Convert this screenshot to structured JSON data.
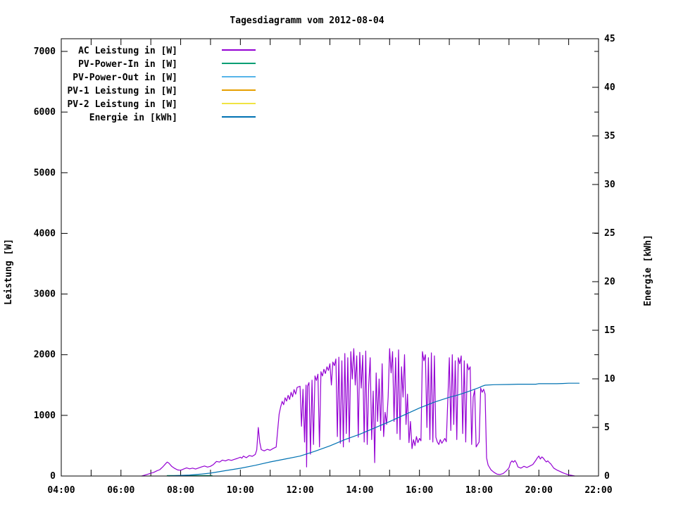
{
  "title": "Tagesdiagramm vom 2012-08-04",
  "chart_data": {
    "type": "line",
    "title": "Tagesdiagramm vom 2012-08-04",
    "background_color": "#ffffff",
    "border_color": "#000000",
    "legend_position": "top-left-inside",
    "grid": false,
    "x_axis": {
      "min_hour": 4,
      "max_hour": 22,
      "tick_interval_hours": 1,
      "labels": [
        {
          "t": 4,
          "text": "04:00"
        },
        {
          "t": 6,
          "text": "06:00"
        },
        {
          "t": 8,
          "text": "08:00"
        },
        {
          "t": 10,
          "text": "10:00"
        },
        {
          "t": 12,
          "text": "12:00"
        },
        {
          "t": 14,
          "text": "14:00"
        },
        {
          "t": 16,
          "text": "16:00"
        },
        {
          "t": 18,
          "text": "18:00"
        },
        {
          "t": 20,
          "text": "20:00"
        },
        {
          "t": 22,
          "text": "22:00"
        }
      ]
    },
    "left_axis": {
      "label": "Leistung [W]",
      "min": 0,
      "max": 7250,
      "tick_step": 1000,
      "tick_max": 7000,
      "tick_labels": [
        "0",
        "1000",
        "2000",
        "3000",
        "4000",
        "5000",
        "6000",
        "7000"
      ]
    },
    "right_axis": {
      "label": "Energie [kWh]",
      "min": 0,
      "max": 45,
      "tick_step": 5,
      "tick_labels": [
        "0",
        "5",
        "10",
        "15",
        "20",
        "25",
        "30",
        "35",
        "40",
        "45"
      ]
    },
    "series": [
      {
        "name": "ac-leistung",
        "legend_label": "AC Leistung in [W]",
        "color": "#9400d3",
        "axis": "left",
        "points": [
          [
            6.7,
            0
          ],
          [
            6.8,
            15
          ],
          [
            6.9,
            30
          ],
          [
            7.0,
            45
          ],
          [
            7.1,
            60
          ],
          [
            7.2,
            85
          ],
          [
            7.3,
            105
          ],
          [
            7.4,
            150
          ],
          [
            7.5,
            205
          ],
          [
            7.55,
            230
          ],
          [
            7.6,
            215
          ],
          [
            7.7,
            160
          ],
          [
            7.8,
            125
          ],
          [
            7.9,
            100
          ],
          [
            8.0,
            95
          ],
          [
            8.1,
            115
          ],
          [
            8.2,
            135
          ],
          [
            8.3,
            118
          ],
          [
            8.4,
            130
          ],
          [
            8.5,
            115
          ],
          [
            8.6,
            132
          ],
          [
            8.7,
            150
          ],
          [
            8.8,
            165
          ],
          [
            8.9,
            148
          ],
          [
            9.0,
            160
          ],
          [
            9.1,
            190
          ],
          [
            9.2,
            240
          ],
          [
            9.3,
            230
          ],
          [
            9.4,
            262
          ],
          [
            9.5,
            248
          ],
          [
            9.6,
            270
          ],
          [
            9.7,
            258
          ],
          [
            9.8,
            275
          ],
          [
            9.9,
            290
          ],
          [
            10.0,
            310
          ],
          [
            10.05,
            295
          ],
          [
            10.1,
            328
          ],
          [
            10.2,
            302
          ],
          [
            10.3,
            338
          ],
          [
            10.4,
            325
          ],
          [
            10.5,
            355
          ],
          [
            10.55,
            430
          ],
          [
            10.6,
            800
          ],
          [
            10.65,
            555
          ],
          [
            10.7,
            435
          ],
          [
            10.8,
            415
          ],
          [
            10.9,
            440
          ],
          [
            11.0,
            425
          ],
          [
            11.1,
            455
          ],
          [
            11.2,
            478
          ],
          [
            11.3,
            1020
          ],
          [
            11.35,
            1140
          ],
          [
            11.4,
            1230
          ],
          [
            11.45,
            1175
          ],
          [
            11.5,
            1290
          ],
          [
            11.55,
            1235
          ],
          [
            11.6,
            1330
          ],
          [
            11.65,
            1262
          ],
          [
            11.7,
            1380
          ],
          [
            11.75,
            1305
          ],
          [
            11.8,
            1425
          ],
          [
            11.85,
            1350
          ],
          [
            11.9,
            1460
          ],
          [
            12.0,
            1480
          ],
          [
            12.05,
            820
          ],
          [
            12.1,
            1430
          ],
          [
            12.15,
            560
          ],
          [
            12.2,
            1500
          ],
          [
            12.22,
            150
          ],
          [
            12.25,
            1480
          ],
          [
            12.3,
            1540
          ],
          [
            12.35,
            360
          ],
          [
            12.4,
            1580
          ],
          [
            12.45,
            520
          ],
          [
            12.5,
            1650
          ],
          [
            12.55,
            1575
          ],
          [
            12.6,
            1680
          ],
          [
            12.65,
            480
          ],
          [
            12.7,
            1720
          ],
          [
            12.75,
            1650
          ],
          [
            12.8,
            1760
          ],
          [
            12.85,
            1690
          ],
          [
            12.9,
            1800
          ],
          [
            12.95,
            1740
          ],
          [
            13.0,
            1850
          ],
          [
            13.05,
            1500
          ],
          [
            13.1,
            1880
          ],
          [
            13.15,
            1820
          ],
          [
            13.2,
            1930
          ],
          [
            13.25,
            650
          ],
          [
            13.3,
            1960
          ],
          [
            13.35,
            540
          ],
          [
            13.4,
            1900
          ],
          [
            13.45,
            480
          ],
          [
            13.5,
            2020
          ],
          [
            13.55,
            700
          ],
          [
            13.6,
            1950
          ],
          [
            13.65,
            560
          ],
          [
            13.7,
            2050
          ],
          [
            13.75,
            1600
          ],
          [
            13.8,
            2100
          ],
          [
            13.85,
            1500
          ],
          [
            13.9,
            1980
          ],
          [
            13.95,
            640
          ],
          [
            14.0,
            2040
          ],
          [
            14.05,
            1450
          ],
          [
            14.1,
            1990
          ],
          [
            14.15,
            560
          ],
          [
            14.2,
            2060
          ],
          [
            14.25,
            520
          ],
          [
            14.3,
            1500
          ],
          [
            14.35,
            1950
          ],
          [
            14.4,
            600
          ],
          [
            14.45,
            1400
          ],
          [
            14.5,
            220
          ],
          [
            14.55,
            1700
          ],
          [
            14.6,
            900
          ],
          [
            14.65,
            1600
          ],
          [
            14.7,
            750
          ],
          [
            14.75,
            1850
          ],
          [
            14.8,
            650
          ],
          [
            14.85,
            1050
          ],
          [
            14.9,
            850
          ],
          [
            14.95,
            1300
          ],
          [
            15.0,
            2100
          ],
          [
            15.05,
            1700
          ],
          [
            15.1,
            2050
          ],
          [
            15.15,
            900
          ],
          [
            15.2,
            1950
          ],
          [
            15.25,
            700
          ],
          [
            15.3,
            2080
          ],
          [
            15.35,
            600
          ],
          [
            15.4,
            1800
          ],
          [
            15.45,
            1300
          ],
          [
            15.5,
            2000
          ],
          [
            15.55,
            850
          ],
          [
            15.6,
            1350
          ],
          [
            15.65,
            550
          ],
          [
            15.7,
            900
          ],
          [
            15.75,
            450
          ],
          [
            15.8,
            600
          ],
          [
            15.85,
            500
          ],
          [
            15.9,
            650
          ],
          [
            15.95,
            550
          ],
          [
            16.0,
            620
          ],
          [
            16.05,
            580
          ],
          [
            16.1,
            2050
          ],
          [
            16.15,
            1900
          ],
          [
            16.2,
            2000
          ],
          [
            16.25,
            800
          ],
          [
            16.3,
            1950
          ],
          [
            16.35,
            600
          ],
          [
            16.4,
            2030
          ],
          [
            16.45,
            560
          ],
          [
            16.5,
            1980
          ],
          [
            16.55,
            640
          ],
          [
            16.6,
            560
          ],
          [
            16.65,
            520
          ],
          [
            16.7,
            600
          ],
          [
            16.75,
            540
          ],
          [
            16.8,
            580
          ],
          [
            16.85,
            620
          ],
          [
            16.9,
            565
          ],
          [
            17.0,
            1950
          ],
          [
            17.05,
            750
          ],
          [
            17.1,
            2000
          ],
          [
            17.15,
            850
          ],
          [
            17.2,
            1900
          ],
          [
            17.25,
            600
          ],
          [
            17.3,
            1950
          ],
          [
            17.35,
            1850
          ],
          [
            17.4,
            1980
          ],
          [
            17.45,
            700
          ],
          [
            17.5,
            1900
          ],
          [
            17.55,
            560
          ],
          [
            17.6,
            1850
          ],
          [
            17.65,
            1750
          ],
          [
            17.7,
            1800
          ],
          [
            17.75,
            520
          ],
          [
            17.8,
            1300
          ],
          [
            17.85,
            1420
          ],
          [
            17.9,
            480
          ],
          [
            17.95,
            520
          ],
          [
            18.0,
            560
          ],
          [
            18.05,
            1450
          ],
          [
            18.1,
            1380
          ],
          [
            18.15,
            1430
          ],
          [
            18.2,
            1350
          ],
          [
            18.25,
            300
          ],
          [
            18.3,
            180
          ],
          [
            18.4,
            100
          ],
          [
            18.5,
            60
          ],
          [
            18.6,
            30
          ],
          [
            18.7,
            25
          ],
          [
            18.8,
            40
          ],
          [
            18.9,
            80
          ],
          [
            19.0,
            135
          ],
          [
            19.05,
            220
          ],
          [
            19.1,
            250
          ],
          [
            19.15,
            228
          ],
          [
            19.2,
            255
          ],
          [
            19.25,
            215
          ],
          [
            19.3,
            150
          ],
          [
            19.4,
            130
          ],
          [
            19.5,
            160
          ],
          [
            19.6,
            140
          ],
          [
            19.7,
            165
          ],
          [
            19.8,
            190
          ],
          [
            19.9,
            260
          ],
          [
            19.95,
            300
          ],
          [
            20.0,
            330
          ],
          [
            20.05,
            280
          ],
          [
            20.1,
            315
          ],
          [
            20.15,
            295
          ],
          [
            20.2,
            260
          ],
          [
            20.25,
            232
          ],
          [
            20.3,
            250
          ],
          [
            20.35,
            222
          ],
          [
            20.4,
            200
          ],
          [
            20.5,
            130
          ],
          [
            20.6,
            100
          ],
          [
            20.7,
            78
          ],
          [
            20.8,
            55
          ],
          [
            20.9,
            35
          ],
          [
            21.0,
            20
          ],
          [
            21.1,
            10
          ],
          [
            21.2,
            0
          ]
        ]
      },
      {
        "name": "pv-power-in",
        "legend_label": "PV-Power-In in [W]",
        "color": "#009e73",
        "axis": "left",
        "points": [
          [
            7.55,
            8
          ],
          [
            7.9,
            8
          ],
          [
            8.2,
            8
          ],
          [
            8.5,
            8
          ],
          [
            8.8,
            8
          ],
          [
            9.05,
            8
          ]
        ]
      },
      {
        "name": "pv-power-out",
        "legend_label": "PV-Power-Out in [W]",
        "color": "#56b4e9",
        "axis": "left",
        "points": []
      },
      {
        "name": "pv1-leistung",
        "legend_label": "PV-1 Leistung in [W]",
        "color": "#e69f00",
        "axis": "left",
        "points": []
      },
      {
        "name": "pv2-leistung",
        "legend_label": "PV-2 Leistung in [W]",
        "color": "#f0e442",
        "axis": "left",
        "points": []
      },
      {
        "name": "energie",
        "legend_label": "Energie in [kWh]",
        "color": "#0072b2",
        "axis": "right",
        "points": [
          [
            7.6,
            0
          ],
          [
            7.9,
            0.05
          ],
          [
            8.3,
            0.1
          ],
          [
            8.7,
            0.2
          ],
          [
            9.0,
            0.3
          ],
          [
            9.5,
            0.55
          ],
          [
            10.0,
            0.8
          ],
          [
            10.5,
            1.1
          ],
          [
            11.0,
            1.45
          ],
          [
            11.5,
            1.75
          ],
          [
            12.0,
            2.05
          ],
          [
            12.5,
            2.55
          ],
          [
            13.0,
            3.1
          ],
          [
            13.5,
            3.75
          ],
          [
            14.0,
            4.3
          ],
          [
            14.5,
            4.95
          ],
          [
            15.0,
            5.6
          ],
          [
            15.5,
            6.3
          ],
          [
            16.0,
            7.0
          ],
          [
            16.5,
            7.6
          ],
          [
            17.0,
            8.1
          ],
          [
            17.3,
            8.35
          ],
          [
            17.6,
            8.65
          ],
          [
            18.0,
            9.1
          ],
          [
            18.1,
            9.25
          ],
          [
            18.2,
            9.35
          ],
          [
            18.5,
            9.4
          ],
          [
            19.0,
            9.42
          ],
          [
            19.3,
            9.45
          ],
          [
            19.9,
            9.45
          ],
          [
            20.0,
            9.5
          ],
          [
            20.6,
            9.5
          ],
          [
            20.8,
            9.52
          ],
          [
            21.0,
            9.55
          ],
          [
            21.35,
            9.55
          ]
        ]
      }
    ]
  }
}
